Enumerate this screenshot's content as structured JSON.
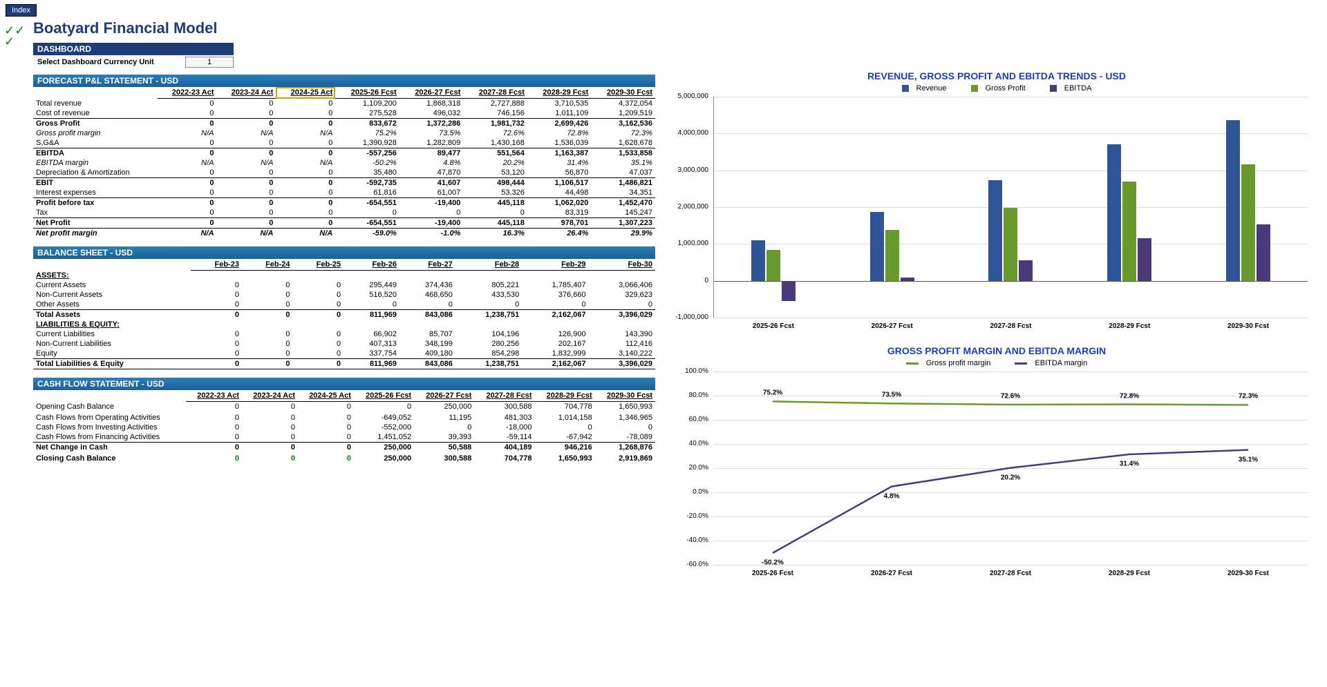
{
  "ui": {
    "index_tab": "Index",
    "page_title": "Boatyard Financial Model",
    "dashboard_label": "DASHBOARD",
    "currency_label": "Select Dashboard Currency Unit",
    "currency_value": "1"
  },
  "colors": {
    "header_bar": "#1c3d7a",
    "table_header": "#1f6fa8",
    "revenue": "#2e5597",
    "gross_profit": "#6a9a2d",
    "ebitda": "#4a3a7a",
    "gp_margin_line": "#6a9a2d",
    "ebitda_margin_line": "#4a3a7a"
  },
  "pnl": {
    "title": "FORECAST P&L STATEMENT - USD",
    "headers": [
      "",
      "2022-23 Act",
      "2023-24 Act",
      "2024-25 Act",
      "2025-26 Fcst",
      "2026-27 Fcst",
      "2027-28 Fcst",
      "2028-29 Fcst",
      "2029-30 Fcst"
    ],
    "rows": [
      {
        "label": "Total revenue",
        "vals": [
          "0",
          "0",
          "0",
          "1,109,200",
          "1,868,318",
          "2,727,888",
          "3,710,535",
          "4,372,054"
        ]
      },
      {
        "label": "Cost of revenue",
        "vals": [
          "0",
          "0",
          "0",
          "275,528",
          "496,032",
          "746,156",
          "1,011,109",
          "1,209,519"
        ],
        "bot": true
      },
      {
        "label": "Gross Profit",
        "vals": [
          "0",
          "0",
          "0",
          "833,672",
          "1,372,286",
          "1,981,732",
          "2,699,426",
          "3,162,536"
        ],
        "bold": true
      },
      {
        "label": "Gross profit margin",
        "vals": [
          "N/A",
          "N/A",
          "N/A",
          "75.2%",
          "73.5%",
          "72.6%",
          "72.8%",
          "72.3%"
        ],
        "italic": true
      },
      {
        "label": "S,G&A",
        "vals": [
          "0",
          "0",
          "0",
          "1,390,928",
          "1,282,809",
          "1,430,168",
          "1,536,039",
          "1,628,678"
        ],
        "bot": true
      },
      {
        "label": "EBITDA",
        "vals": [
          "0",
          "0",
          "0",
          "-557,256",
          "89,477",
          "551,564",
          "1,163,387",
          "1,533,858"
        ],
        "bold": true
      },
      {
        "label": "EBITDA margin",
        "vals": [
          "N/A",
          "N/A",
          "N/A",
          "-50.2%",
          "4.8%",
          "20.2%",
          "31.4%",
          "35.1%"
        ],
        "italic": true
      },
      {
        "label": "Depreciation & Amortization",
        "vals": [
          "0",
          "0",
          "0",
          "35,480",
          "47,870",
          "53,120",
          "56,870",
          "47,037"
        ],
        "bot": true
      },
      {
        "label": "EBIT",
        "vals": [
          "0",
          "0",
          "0",
          "-592,735",
          "41,607",
          "498,444",
          "1,106,517",
          "1,486,821"
        ],
        "bold": true
      },
      {
        "label": "Interest expenses",
        "vals": [
          "0",
          "0",
          "0",
          "61,816",
          "61,007",
          "53,326",
          "44,498",
          "34,351"
        ],
        "bot": true
      },
      {
        "label": "Profit before tax",
        "vals": [
          "0",
          "0",
          "0",
          "-654,551",
          "-19,400",
          "445,118",
          "1,062,020",
          "1,452,470"
        ],
        "bold": true
      },
      {
        "label": "Tax",
        "vals": [
          "0",
          "0",
          "0",
          "0",
          "0",
          "0",
          "83,319",
          "145,247"
        ],
        "bot": true
      },
      {
        "label": "Net Profit",
        "vals": [
          "0",
          "0",
          "0",
          "-654,551",
          "-19,400",
          "445,118",
          "978,701",
          "1,307,223"
        ],
        "bold": true,
        "bot": true
      },
      {
        "label": "Net profit margin",
        "vals": [
          "N/A",
          "N/A",
          "N/A",
          "-59.0%",
          "-1.0%",
          "16.3%",
          "26.4%",
          "29.9%"
        ],
        "italic": true,
        "bold": true
      }
    ]
  },
  "bs": {
    "title": "BALANCE SHEET - USD",
    "headers": [
      "",
      "Feb-23",
      "Feb-24",
      "Feb-25",
      "Feb-26",
      "Feb-27",
      "Feb-28",
      "Feb-29",
      "Feb-30"
    ],
    "sections": [
      {
        "label": "ASSETS:",
        "rows": [
          {
            "label": "Current Assets",
            "vals": [
              "0",
              "0",
              "0",
              "295,449",
              "374,436",
              "805,221",
              "1,785,407",
              "3,066,406"
            ]
          },
          {
            "label": "Non-Current Assets",
            "vals": [
              "0",
              "0",
              "0",
              "516,520",
              "468,650",
              "433,530",
              "376,660",
              "329,623"
            ]
          },
          {
            "label": "Other Assets",
            "vals": [
              "0",
              "0",
              "0",
              "0",
              "0",
              "0",
              "0",
              "0"
            ],
            "bot": true
          },
          {
            "label": "Total Assets",
            "vals": [
              "0",
              "0",
              "0",
              "811,969",
              "843,086",
              "1,238,751",
              "2,162,067",
              "3,396,029"
            ],
            "bold": true
          }
        ]
      },
      {
        "label": "LIABILITIES & EQUITY:",
        "rows": [
          {
            "label": "Current Liabilities",
            "vals": [
              "0",
              "0",
              "0",
              "66,902",
              "85,707",
              "104,196",
              "126,900",
              "143,390"
            ]
          },
          {
            "label": "Non-Current Liabilities",
            "vals": [
              "0",
              "0",
              "0",
              "407,313",
              "348,199",
              "280,256",
              "202,167",
              "112,416"
            ]
          },
          {
            "label": "Equity",
            "vals": [
              "0",
              "0",
              "0",
              "337,754",
              "409,180",
              "854,298",
              "1,832,999",
              "3,140,222"
            ],
            "bot": true
          },
          {
            "label": "Total Liabilities & Equity",
            "vals": [
              "0",
              "0",
              "0",
              "811,969",
              "843,086",
              "1,238,751",
              "2,162,067",
              "3,396,029"
            ],
            "bold": true,
            "bot": true
          }
        ]
      }
    ]
  },
  "cf": {
    "title": "CASH FLOW STATEMENT -  USD",
    "headers": [
      "",
      "2022-23 Act",
      "2023-24 Act",
      "2024-25 Act",
      "2025-26 Fcst",
      "2026-27 Fcst",
      "2027-28 Fcst",
      "2028-29 Fcst",
      "2029-30 Fcst"
    ],
    "rows": [
      {
        "label": "Opening Cash Balance",
        "vals": [
          "0",
          "0",
          "0",
          "0",
          "250,000",
          "300,588",
          "704,778",
          "1,650,993"
        ]
      },
      {
        "label": "",
        "vals": [
          "",
          "",
          "",
          "",
          "",
          "",
          "",
          ""
        ]
      },
      {
        "label": "Cash Flows from Operating Activities",
        "vals": [
          "0",
          "0",
          "0",
          "-649,052",
          "11,195",
          "481,303",
          "1,014,158",
          "1,346,965"
        ]
      },
      {
        "label": "Cash Flows from Investing Activities",
        "vals": [
          "0",
          "0",
          "0",
          "-552,000",
          "0",
          "-18,000",
          "0",
          "0"
        ]
      },
      {
        "label": "Cash Flows from Financing Activities",
        "vals": [
          "0",
          "0",
          "0",
          "1,451,052",
          "39,393",
          "-59,114",
          "-67,942",
          "-78,089"
        ],
        "bot": true
      },
      {
        "label": "Net Change in Cash",
        "vals": [
          "0",
          "0",
          "0",
          "250,000",
          "50,588",
          "404,189",
          "946,216",
          "1,268,876"
        ],
        "bold": true
      },
      {
        "label": "",
        "vals": [
          "",
          "",
          "",
          "",
          "",
          "",
          "",
          ""
        ]
      },
      {
        "label": "Closing Cash Balance",
        "vals": [
          "0",
          "0",
          "0",
          "250,000",
          "300,588",
          "704,778",
          "1,650,993",
          "2,919,869"
        ],
        "bold": true,
        "green": true
      }
    ]
  },
  "bar_chart": {
    "title": "REVENUE, GROSS PROFIT AND EBITDA TRENDS - USD",
    "legend": [
      "Revenue",
      "Gross Profit",
      "EBITDA"
    ],
    "y_min": -1000000,
    "y_max": 5000000,
    "y_step": 1000000,
    "y_labels": [
      "-1,000,000",
      "0",
      "1,000,000",
      "2,000,000",
      "3,000,000",
      "4,000,000",
      "5,000,000"
    ],
    "categories": [
      "2025-26 Fcst",
      "2026-27 Fcst",
      "2027-28 Fcst",
      "2028-29 Fcst",
      "2029-30 Fcst"
    ],
    "series": {
      "revenue": [
        1109200,
        1868318,
        2727888,
        3710535,
        4372054
      ],
      "gross_profit": [
        833672,
        1372286,
        1981732,
        2699426,
        3162536
      ],
      "ebitda": [
        -557256,
        89477,
        551564,
        1163387,
        1533858
      ]
    }
  },
  "line_chart": {
    "title": "GROSS PROFIT MARGIN AND EBITDA MARGIN",
    "legend": [
      "Gross profit margin",
      "EBITDA margin"
    ],
    "y_min": -60,
    "y_max": 100,
    "y_step": 20,
    "y_labels": [
      "-60.0%",
      "-40.0%",
      "-20.0%",
      "0.0%",
      "20.0%",
      "40.0%",
      "60.0%",
      "80.0%",
      "100.0%"
    ],
    "categories": [
      "2025-26 Fcst",
      "2026-27 Fcst",
      "2027-28 Fcst",
      "2028-29 Fcst",
      "2029-30 Fcst"
    ],
    "series": {
      "gp": {
        "vals": [
          75.2,
          73.5,
          72.6,
          72.8,
          72.3
        ],
        "labels": [
          "75.2%",
          "73.5%",
          "72.6%",
          "72.8%",
          "72.3%"
        ]
      },
      "ebitda": {
        "vals": [
          -50.2,
          4.8,
          20.2,
          31.4,
          35.1
        ],
        "labels": [
          "-50.2%",
          "4.8%",
          "20.2%",
          "31.4%",
          "35.1%"
        ]
      }
    }
  }
}
